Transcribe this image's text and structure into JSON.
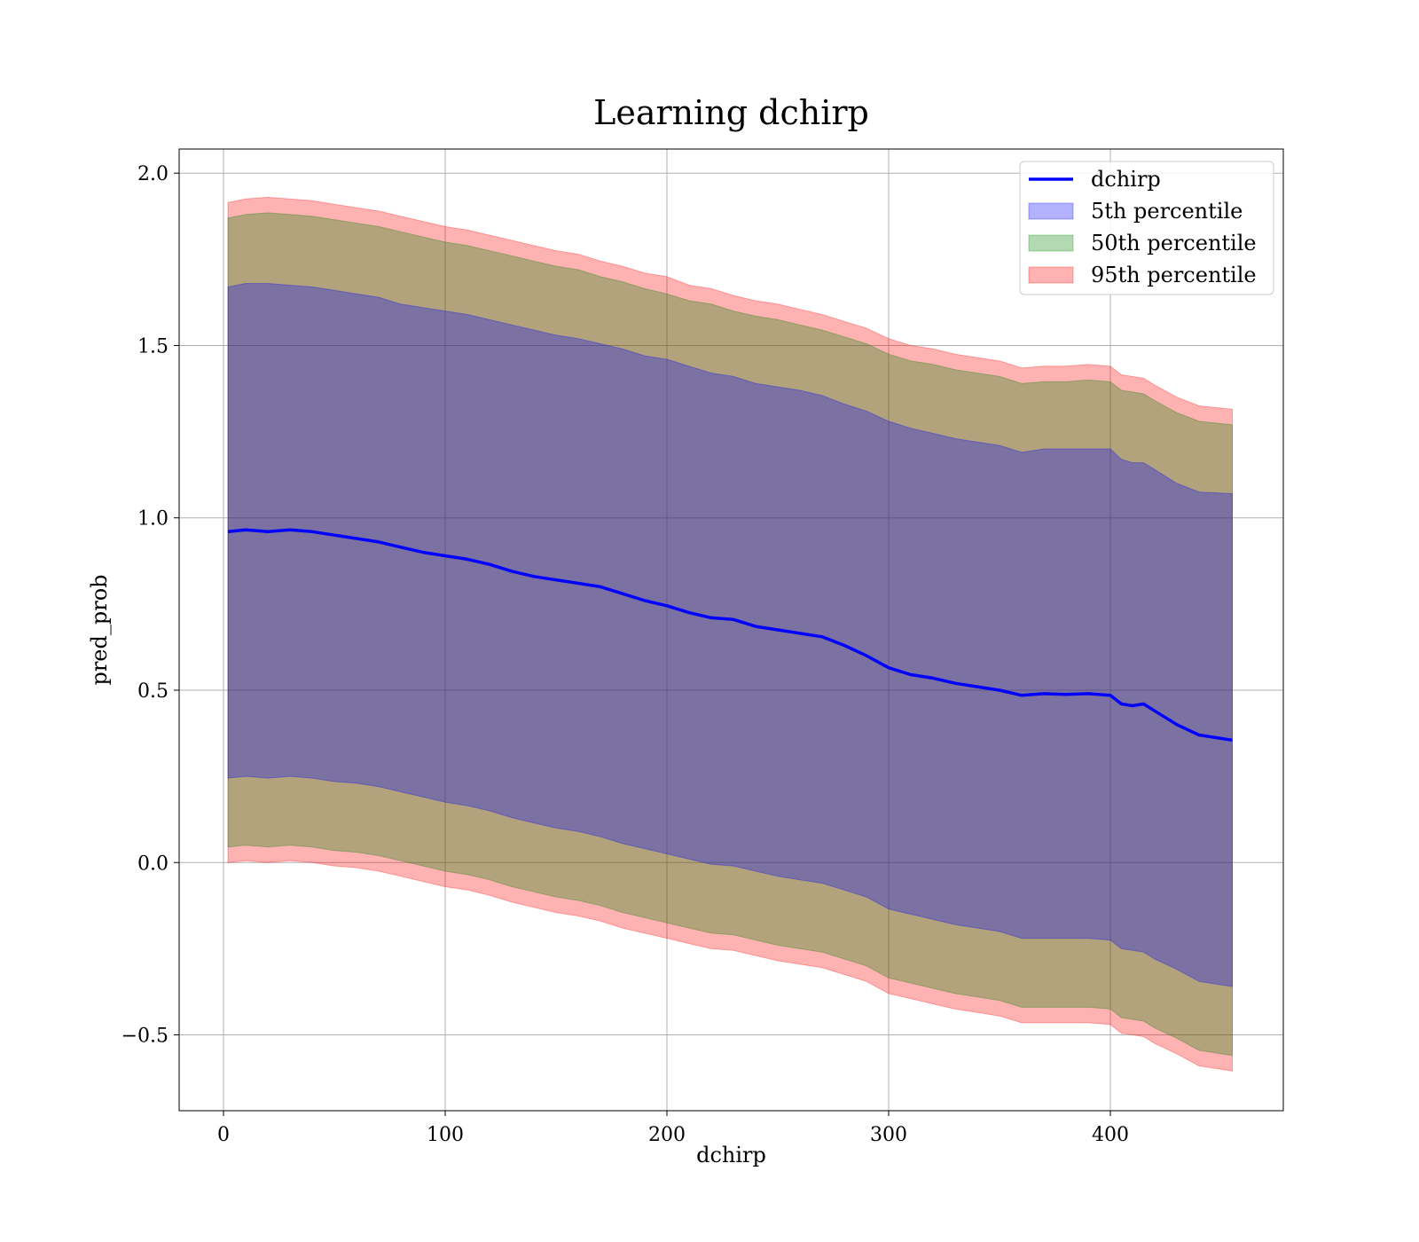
{
  "chart_data": {
    "type": "area",
    "title": "Learning dchirp",
    "xlabel": "dchirp",
    "ylabel": "pred_prob",
    "xlim": [
      -20,
      478
    ],
    "ylim": [
      -0.72,
      2.07
    ],
    "xticks": [
      0,
      100,
      200,
      300,
      400
    ],
    "yticks": [
      -0.5,
      0.0,
      0.5,
      1.0,
      1.5,
      2.0
    ],
    "xtick_labels": [
      "0",
      "100",
      "200",
      "300",
      "400"
    ],
    "ytick_labels": [
      "−0.5",
      "0.0",
      "0.5",
      "1.0",
      "1.5",
      "2.0"
    ],
    "grid": true,
    "legend_position": "top-right",
    "x": [
      2,
      10,
      20,
      30,
      40,
      50,
      60,
      70,
      80,
      90,
      100,
      110,
      120,
      130,
      140,
      150,
      160,
      170,
      180,
      190,
      200,
      210,
      220,
      230,
      240,
      250,
      260,
      270,
      280,
      290,
      300,
      310,
      320,
      330,
      340,
      350,
      360,
      370,
      380,
      390,
      400,
      405,
      410,
      415,
      420,
      430,
      440,
      455
    ],
    "series": [
      {
        "name": "dchirp",
        "kind": "line",
        "color": "#0000ff",
        "values": [
          0.96,
          0.965,
          0.96,
          0.965,
          0.96,
          0.95,
          0.94,
          0.93,
          0.915,
          0.9,
          0.89,
          0.88,
          0.865,
          0.845,
          0.83,
          0.82,
          0.81,
          0.8,
          0.78,
          0.76,
          0.745,
          0.725,
          0.71,
          0.705,
          0.685,
          0.675,
          0.665,
          0.655,
          0.63,
          0.6,
          0.565,
          0.545,
          0.535,
          0.52,
          0.51,
          0.5,
          0.485,
          0.49,
          0.488,
          0.49,
          0.485,
          0.46,
          0.455,
          0.46,
          0.44,
          0.4,
          0.37,
          0.355
        ]
      },
      {
        "name": "5th percentile",
        "kind": "band",
        "color": "#0000ff",
        "opacity": 0.3,
        "upper": [
          1.67,
          1.68,
          1.68,
          1.675,
          1.67,
          1.66,
          1.65,
          1.64,
          1.62,
          1.61,
          1.6,
          1.59,
          1.575,
          1.56,
          1.545,
          1.53,
          1.52,
          1.505,
          1.49,
          1.47,
          1.46,
          1.44,
          1.42,
          1.41,
          1.39,
          1.38,
          1.37,
          1.355,
          1.33,
          1.31,
          1.28,
          1.26,
          1.245,
          1.23,
          1.22,
          1.21,
          1.19,
          1.2,
          1.2,
          1.2,
          1.2,
          1.17,
          1.16,
          1.16,
          1.14,
          1.1,
          1.075,
          1.07
        ],
        "lower": [
          0.245,
          0.25,
          0.245,
          0.25,
          0.245,
          0.235,
          0.23,
          0.22,
          0.205,
          0.19,
          0.175,
          0.165,
          0.15,
          0.13,
          0.115,
          0.1,
          0.09,
          0.075,
          0.055,
          0.04,
          0.025,
          0.01,
          -0.005,
          -0.01,
          -0.025,
          -0.04,
          -0.05,
          -0.06,
          -0.08,
          -0.1,
          -0.135,
          -0.15,
          -0.165,
          -0.18,
          -0.19,
          -0.2,
          -0.22,
          -0.22,
          -0.22,
          -0.22,
          -0.225,
          -0.25,
          -0.255,
          -0.26,
          -0.28,
          -0.31,
          -0.345,
          -0.36
        ]
      },
      {
        "name": "50th percentile",
        "kind": "band",
        "color": "#008000",
        "opacity": 0.3,
        "upper": [
          1.87,
          1.88,
          1.885,
          1.88,
          1.875,
          1.865,
          1.855,
          1.845,
          1.83,
          1.815,
          1.8,
          1.79,
          1.775,
          1.76,
          1.745,
          1.73,
          1.72,
          1.7,
          1.685,
          1.665,
          1.65,
          1.63,
          1.62,
          1.6,
          1.585,
          1.575,
          1.56,
          1.545,
          1.525,
          1.505,
          1.475,
          1.455,
          1.445,
          1.43,
          1.42,
          1.41,
          1.39,
          1.395,
          1.395,
          1.4,
          1.395,
          1.37,
          1.365,
          1.36,
          1.34,
          1.305,
          1.28,
          1.27
        ],
        "lower": [
          0.045,
          0.05,
          0.045,
          0.05,
          0.045,
          0.035,
          0.03,
          0.02,
          0.005,
          -0.01,
          -0.025,
          -0.035,
          -0.05,
          -0.07,
          -0.085,
          -0.1,
          -0.11,
          -0.125,
          -0.145,
          -0.16,
          -0.175,
          -0.19,
          -0.205,
          -0.21,
          -0.225,
          -0.24,
          -0.25,
          -0.26,
          -0.28,
          -0.3,
          -0.335,
          -0.35,
          -0.365,
          -0.38,
          -0.39,
          -0.4,
          -0.42,
          -0.42,
          -0.42,
          -0.42,
          -0.425,
          -0.45,
          -0.455,
          -0.46,
          -0.48,
          -0.51,
          -0.545,
          -0.56
        ]
      },
      {
        "name": "95th percentile",
        "kind": "band",
        "color": "#ff0000",
        "opacity": 0.3,
        "upper": [
          1.915,
          1.925,
          1.93,
          1.925,
          1.92,
          1.91,
          1.9,
          1.89,
          1.875,
          1.86,
          1.845,
          1.835,
          1.82,
          1.805,
          1.79,
          1.775,
          1.765,
          1.745,
          1.73,
          1.71,
          1.7,
          1.675,
          1.665,
          1.645,
          1.63,
          1.62,
          1.605,
          1.59,
          1.57,
          1.55,
          1.52,
          1.5,
          1.49,
          1.475,
          1.465,
          1.455,
          1.435,
          1.44,
          1.44,
          1.445,
          1.44,
          1.415,
          1.41,
          1.405,
          1.385,
          1.35,
          1.325,
          1.315
        ],
        "lower": [
          0.0,
          0.005,
          0.0,
          0.005,
          0.0,
          -0.01,
          -0.015,
          -0.025,
          -0.04,
          -0.055,
          -0.07,
          -0.08,
          -0.095,
          -0.115,
          -0.13,
          -0.145,
          -0.155,
          -0.17,
          -0.19,
          -0.205,
          -0.22,
          -0.235,
          -0.25,
          -0.255,
          -0.27,
          -0.285,
          -0.295,
          -0.305,
          -0.325,
          -0.345,
          -0.38,
          -0.395,
          -0.41,
          -0.425,
          -0.435,
          -0.445,
          -0.465,
          -0.465,
          -0.465,
          -0.465,
          -0.47,
          -0.495,
          -0.5,
          -0.505,
          -0.525,
          -0.555,
          -0.59,
          -0.605
        ]
      }
    ]
  }
}
